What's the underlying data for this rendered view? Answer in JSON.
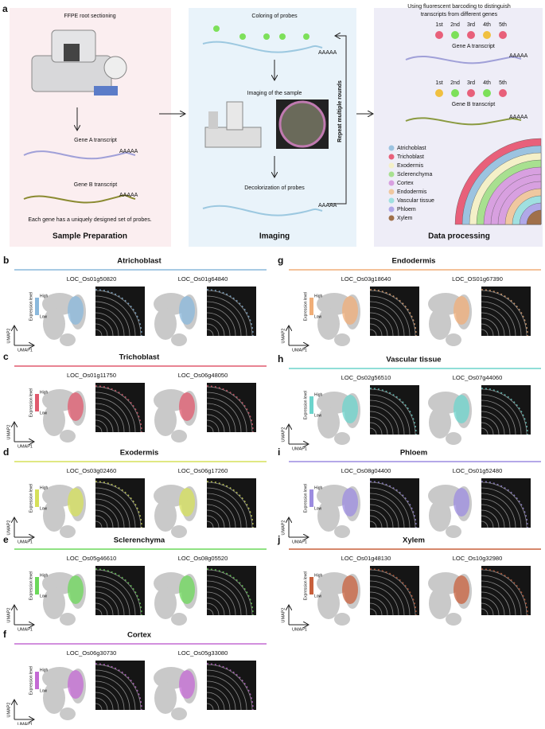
{
  "panel_a": {
    "label": "a",
    "sample_preparation": {
      "title": "FFPE root sectioning",
      "gene_a": "Gene A transcript",
      "gene_b": "Gene B transcript",
      "note": "Each gene has a uniquely designed set of probes.",
      "caption": "Sample Preparation"
    },
    "imaging": {
      "coloring": "Coloring of probes",
      "imaging": "Imaging of the sample",
      "decolor": "Decolorization of probes",
      "repeat": "Repeat multiple rounds",
      "caption": "Imaging"
    },
    "poly_a": "AAAAA",
    "data_processing": {
      "title_lines": [
        "Using fluorescent barcoding to distinguish",
        "transcripts from different genes"
      ],
      "rounds": [
        "1st",
        "2nd",
        "3rd",
        "4th",
        "5th"
      ],
      "gene_a": "Gene A transcript",
      "gene_b": "Gene B transcript",
      "legend": [
        {
          "name": "Atrichoblast",
          "color": "#9cc3e0"
        },
        {
          "name": "Trichoblast",
          "color": "#e8607a"
        },
        {
          "name": "Exodermis",
          "color": "#f4f0c8"
        },
        {
          "name": "Sclerenchyma",
          "color": "#a8e090"
        },
        {
          "name": "Cortex",
          "color": "#d8a0e0"
        },
        {
          "name": "Endodermis",
          "color": "#f0c8a0"
        },
        {
          "name": "Vascular tissue",
          "color": "#a0e0e0"
        },
        {
          "name": "Phloem",
          "color": "#b0a8e8"
        },
        {
          "name": "Xylem",
          "color": "#a0704a"
        }
      ],
      "caption": "Data processing"
    }
  },
  "umap_labels": {
    "x": "UMAP1",
    "y": "UMAP2",
    "legend_title": "Expression level",
    "high": "High",
    "low": "Low"
  },
  "panels": [
    {
      "label": "b",
      "title": "Atrichoblast",
      "color": "#8ab8dc",
      "genes": [
        "LOC_Os01g50820",
        "LOC_Os01g64840"
      ]
    },
    {
      "label": "c",
      "title": "Trichoblast",
      "color": "#e05a6e",
      "genes": [
        "LOC_Os01g11750",
        "LOC_Os06g48050"
      ]
    },
    {
      "label": "d",
      "title": "Exodermis",
      "color": "#d6e05a",
      "genes": [
        "LOC_Os03g02460",
        "LOC_Os06g17260"
      ]
    },
    {
      "label": "e",
      "title": "Sclerenchyma",
      "color": "#6cd85a",
      "genes": [
        "LOC_Os05g46610",
        "LOC_Os08g05520"
      ]
    },
    {
      "label": "f",
      "title": "Cortex",
      "color": "#c46ad4",
      "genes": [
        "LOC_Os06g30730",
        "LOC_Os05g33080"
      ]
    },
    {
      "label": "g",
      "title": "Endodermis",
      "color": "#f0ae78",
      "genes": [
        "LOC_Os03g18640",
        "LOC_OS01g67390"
      ]
    },
    {
      "label": "h",
      "title": "Vascular tissue",
      "color": "#6cd4cc",
      "genes": [
        "LOC_Os02g56510",
        "LOC_Os07g44060"
      ]
    },
    {
      "label": "i",
      "title": "Phloem",
      "color": "#9c8ce0",
      "genes": [
        "LOC_Os08g04400",
        "LOC_Os01g52480"
      ]
    },
    {
      "label": "j",
      "title": "Xylem",
      "color": "#c8603c",
      "genes": [
        "LOC_Os01g48130",
        "LOC_Os10g32980"
      ]
    }
  ]
}
